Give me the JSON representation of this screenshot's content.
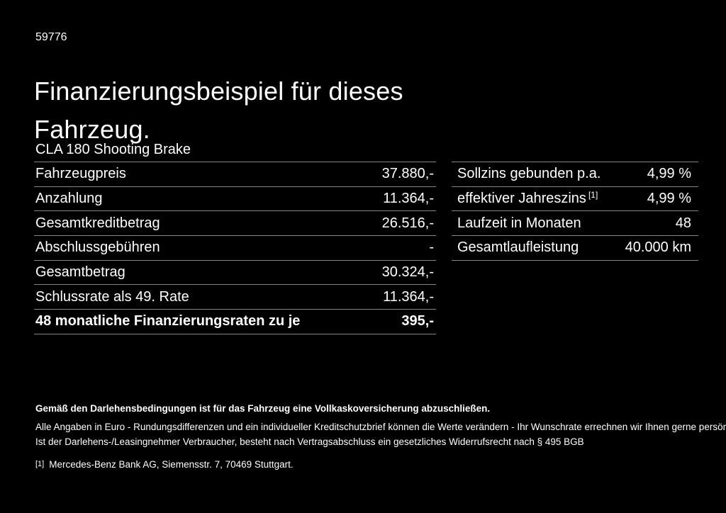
{
  "page": {
    "reference_number": "59776",
    "title": "Finanzierungsbeispiel für dieses Fahrzeug.",
    "vehicle_model": "CLA 180 Shooting Brake"
  },
  "left_table": {
    "rows": [
      {
        "label": "Fahrzeugpreis",
        "value": "37.880,-"
      },
      {
        "label": "Anzahlung",
        "value": "11.364,-"
      },
      {
        "label": "Gesamtkreditbetrag",
        "value": "26.516,-"
      },
      {
        "label": "Abschlussgebühren",
        "value": "-"
      },
      {
        "label": "Gesamtbetrag",
        "value": "30.324,-"
      },
      {
        "label": "Schlussrate als 49. Rate",
        "value": "11.364,-"
      },
      {
        "label": "48 monatliche Finanzierungsraten zu je",
        "value": "395,-"
      }
    ]
  },
  "right_table": {
    "rows": [
      {
        "label": "Sollzins gebunden p.a.",
        "value": "4,99 %"
      },
      {
        "label": "effektiver Jahreszins",
        "sup": "[1]",
        "value": "4,99 %"
      },
      {
        "label": "Laufzeit in Monaten",
        "value": "48"
      },
      {
        "label": "Gesamtlaufleistung",
        "value": "40.000 km"
      }
    ]
  },
  "footer": {
    "insurance_note": "Gemäß den Darlehensbedingungen ist für das Fahrzeug eine Vollkaskoversicherung abzuschließen.",
    "disclaimer_line1": "Alle Angaben in Euro - Rundungsdifferenzen und ein individueller Kreditschutzbrief können die Werte verändern - Ihr Wunschrate errechnen wir Ihnen gerne persönlich",
    "disclaimer_line2": "Ist der Darlehens-/Leasingnehmer Verbraucher, besteht nach Vertragsabschluss ein gesetzliches Widerrufsrecht nach § 495 BGB",
    "footnote_marker": "[1]",
    "footnote_text": "Mercedes-Benz Bank AG, Siemensstr. 7, 70469 Stuttgart."
  },
  "colors": {
    "background": "#000000",
    "text": "#ffffff",
    "divider": "#858585"
  }
}
